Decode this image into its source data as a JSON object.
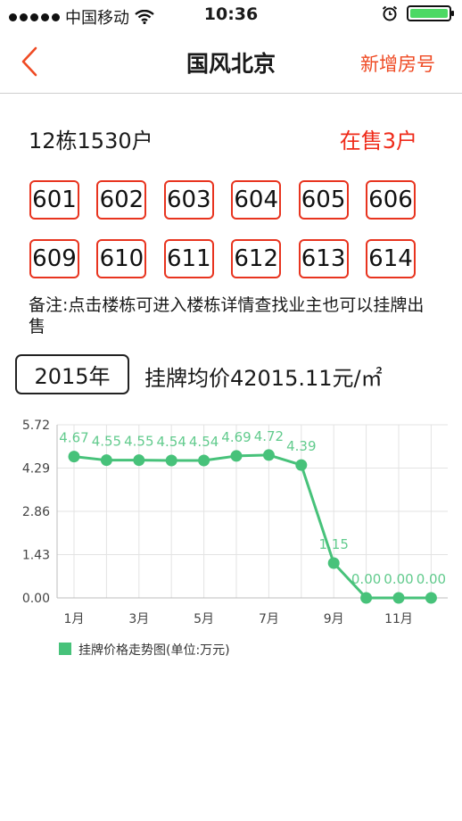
{
  "status_bar": {
    "carrier": "中国移动",
    "time": "10:36"
  },
  "nav": {
    "title": "国风北京",
    "action": "新增房号"
  },
  "building": {
    "name": "12栋1530户",
    "on_sale": "在售3户"
  },
  "rooms": [
    "601",
    "602",
    "603",
    "604",
    "605",
    "606",
    "609",
    "610",
    "611",
    "612",
    "613",
    "614"
  ],
  "remark": "备注:点击楼栋可进入楼栋详情查找业主也可以挂牌出售",
  "year_button": "2015年",
  "average_price_label": "挂牌均价42015.11元/㎡",
  "colors": {
    "accent": "#ef4a23",
    "series": "#47c27a"
  },
  "chart_data": {
    "type": "line",
    "x": [
      "1月",
      "2月",
      "3月",
      "4月",
      "5月",
      "6月",
      "7月",
      "8月",
      "9月",
      "10月",
      "11月",
      "12月"
    ],
    "x_tick_labels": [
      "1月",
      "3月",
      "5月",
      "7月",
      "9月",
      "11月"
    ],
    "y_ticks": [
      "0.00",
      "1.43",
      "2.86",
      "4.29",
      "5.72"
    ],
    "ylim": [
      0,
      5.72
    ],
    "series": [
      {
        "name": "挂牌价格走势图(单位:万元)",
        "values": [
          4.67,
          4.55,
          4.55,
          4.54,
          4.54,
          4.69,
          4.72,
          4.39,
          1.15,
          0.0,
          0.0,
          0.0
        ],
        "labels": [
          "4.67",
          "4.55",
          "4.55",
          "4.54",
          "4.54",
          "4.69",
          "4.72",
          "4.39",
          "1.15",
          "0.00",
          "0.00",
          "0.00"
        ]
      }
    ],
    "legend": "bottom-left",
    "grid": true
  }
}
